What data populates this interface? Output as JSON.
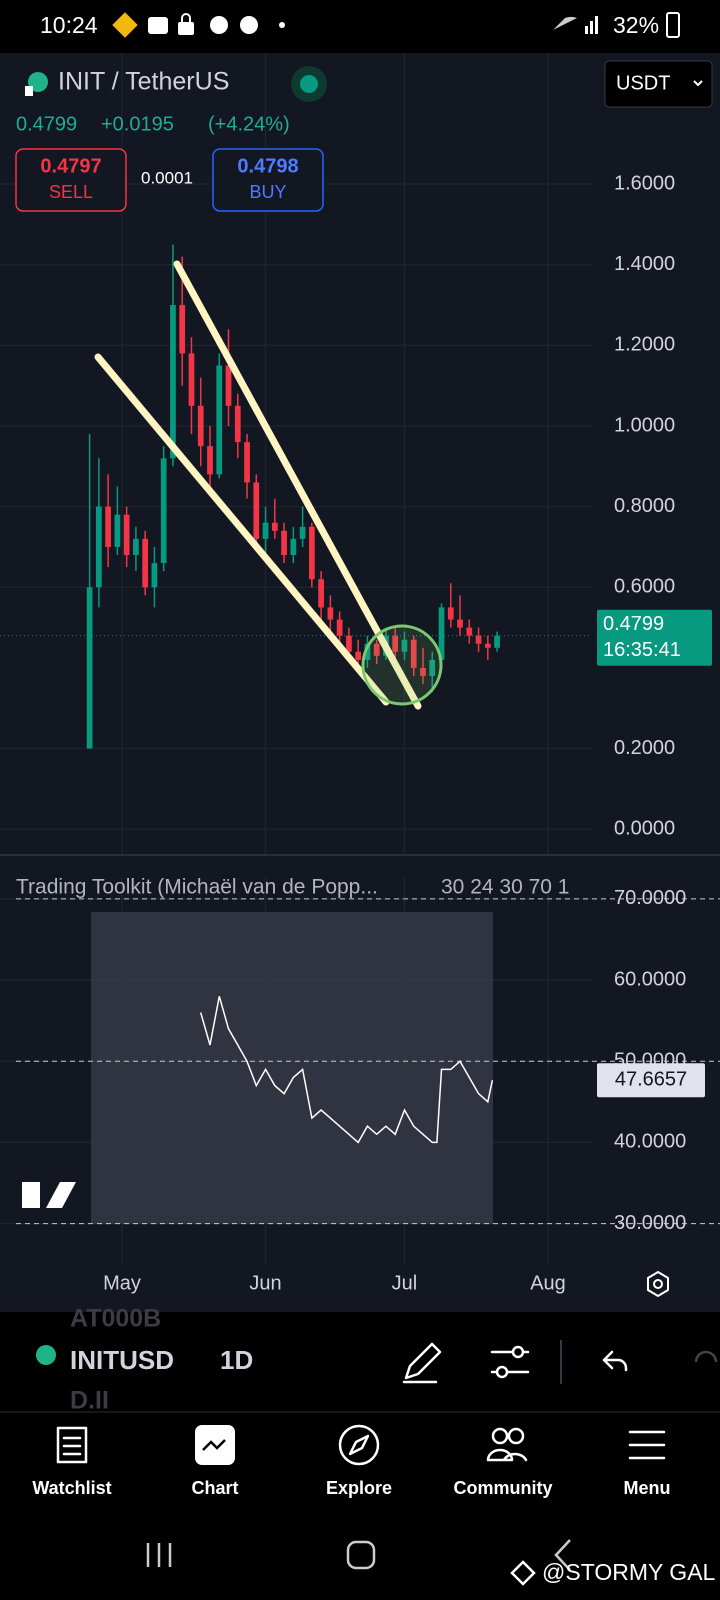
{
  "status_bar": {
    "time": "10:24",
    "battery": "32%"
  },
  "header": {
    "symbol": "INIT / TetherUS",
    "quote_currency": "USDT",
    "last": "0.4799",
    "change": "+0.0195",
    "change_pct": "(+4.24%)",
    "sell_price": "0.4797",
    "sell_label": "SELL",
    "spread": "0.0001",
    "buy_price": "0.4798",
    "buy_label": "BUY"
  },
  "chart_data": [
    {
      "type": "candlestick",
      "up_color": "#089981",
      "down_color": "#f23645",
      "x": [
        -7,
        -5,
        -3,
        -1,
        1,
        3,
        5,
        7,
        9,
        11,
        13,
        15,
        17,
        19,
        21,
        23,
        25,
        27,
        29,
        31,
        33,
        35,
        37,
        39,
        41,
        43,
        45,
        47,
        49,
        51,
        53,
        55,
        57,
        59,
        61,
        63,
        65,
        67,
        69,
        71,
        73,
        75,
        77,
        79,
        81
      ],
      "open": [
        0.2,
        0.6,
        0.8,
        0.7,
        0.78,
        0.68,
        0.72,
        0.6,
        0.66,
        0.92,
        1.3,
        1.18,
        1.05,
        0.95,
        0.88,
        1.15,
        1.05,
        0.96,
        0.86,
        0.72,
        0.76,
        0.74,
        0.68,
        0.72,
        0.75,
        0.62,
        0.55,
        0.52,
        0.48,
        0.44,
        0.42,
        0.46,
        0.43,
        0.48,
        0.44,
        0.47,
        0.4,
        0.38,
        0.42,
        0.55,
        0.52,
        0.5,
        0.48,
        0.46,
        0.45
      ],
      "high": [
        0.98,
        0.92,
        0.88,
        0.85,
        0.8,
        0.75,
        0.74,
        0.7,
        0.95,
        1.45,
        1.42,
        1.22,
        1.12,
        1.0,
        1.18,
        1.24,
        1.08,
        0.98,
        0.88,
        0.8,
        0.82,
        0.76,
        0.75,
        0.8,
        0.76,
        0.64,
        0.58,
        0.54,
        0.5,
        0.47,
        0.48,
        0.47,
        0.5,
        0.5,
        0.49,
        0.48,
        0.45,
        0.44,
        0.56,
        0.61,
        0.58,
        0.52,
        0.5,
        0.48,
        0.49
      ],
      "low": [
        0.2,
        0.55,
        0.65,
        0.68,
        0.65,
        0.64,
        0.58,
        0.55,
        0.64,
        0.9,
        1.1,
        0.98,
        0.9,
        0.83,
        0.87,
        1.0,
        0.92,
        0.82,
        0.7,
        0.68,
        0.72,
        0.66,
        0.66,
        0.7,
        0.6,
        0.52,
        0.49,
        0.46,
        0.42,
        0.4,
        0.4,
        0.41,
        0.42,
        0.42,
        0.42,
        0.38,
        0.36,
        0.34,
        0.4,
        0.5,
        0.48,
        0.46,
        0.44,
        0.42,
        0.44
      ],
      "close": [
        0.6,
        0.8,
        0.7,
        0.78,
        0.68,
        0.72,
        0.6,
        0.66,
        0.92,
        1.3,
        1.18,
        1.05,
        0.95,
        0.88,
        1.15,
        1.05,
        0.96,
        0.86,
        0.72,
        0.76,
        0.74,
        0.68,
        0.72,
        0.75,
        0.62,
        0.55,
        0.52,
        0.48,
        0.44,
        0.42,
        0.46,
        0.43,
        0.48,
        0.44,
        0.47,
        0.4,
        0.38,
        0.42,
        0.55,
        0.52,
        0.5,
        0.48,
        0.46,
        0.45,
        0.4799
      ],
      "countdown": "16:35:41",
      "xlim": [
        -26.35,
        101.5
      ],
      "ylim": [
        -0.064,
        1.925
      ],
      "yticks": [
        {
          "value": 0,
          "label": "0.0000"
        },
        {
          "value": 0.2,
          "label": "0.2000"
        },
        {
          "value": 0.6,
          "label": "0.6000"
        },
        {
          "value": 0.8,
          "label": "0.8000"
        },
        {
          "value": 1,
          "label": "1.0000"
        },
        {
          "value": 1.2,
          "label": "1.2000"
        },
        {
          "value": 1.4,
          "label": "1.4000"
        },
        {
          "value": 1.6,
          "label": "1.6000"
        }
      ],
      "grid": true
    },
    {
      "type": "line",
      "title": "Trading Toolkit (Michaël van de Popp...",
      "params": "30 24 30 70 1",
      "color": "#ffffff",
      "x": [
        17,
        19,
        21,
        23,
        25,
        27,
        29,
        31,
        33,
        35,
        37,
        39,
        41,
        43,
        45,
        47,
        49,
        51,
        53,
        55,
        57,
        59,
        61,
        63,
        65,
        67,
        68,
        69,
        71,
        73,
        75,
        77,
        79,
        80
      ],
      "values": [
        56,
        52,
        58,
        54,
        52,
        50,
        47,
        49,
        47,
        46,
        48,
        49,
        43,
        44,
        43,
        42,
        41,
        40,
        42,
        41,
        42,
        41,
        44,
        42,
        41,
        40,
        40,
        49,
        49,
        50,
        48,
        46,
        45,
        47.6657
      ],
      "xlim": [
        -26.35,
        101.5
      ],
      "ylim": [
        24.9,
        72.7
      ],
      "xticks": [
        {
          "value": 0,
          "label": "May"
        },
        {
          "value": 31,
          "label": "Jun"
        },
        {
          "value": 61,
          "label": "Jul"
        },
        {
          "value": 92,
          "label": "Aug"
        }
      ],
      "yticks": [
        {
          "value": 30,
          "label": "30.0000"
        },
        {
          "value": 40,
          "label": "40.0000"
        },
        {
          "value": 50,
          "label": "50.0000"
        },
        {
          "value": 60,
          "label": "60.0000"
        },
        {
          "value": 70,
          "label": "70.0000"
        }
      ],
      "levels": [
        70,
        50,
        30
      ],
      "grid": true
    }
  ],
  "toolbar": {
    "ghost_top": "AT000B",
    "symbol": "INITUSD",
    "interval": "1D",
    "ghost_bottom": "D.II"
  },
  "nav": [
    "Watchlist",
    "Chart",
    "Explore",
    "Community",
    "Menu"
  ],
  "watermark": "@STORMY GAL"
}
